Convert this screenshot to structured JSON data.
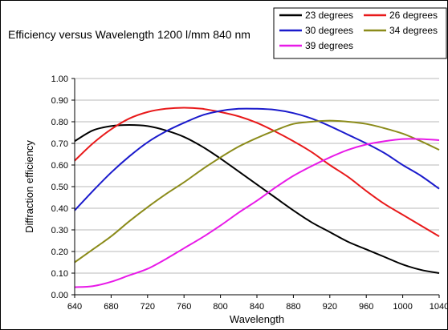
{
  "chart_data": {
    "type": "line",
    "title": "Efficiency versus Wavelength  1200 l/mm 840 nm",
    "xlabel": "Wavelength",
    "ylabel": "Diffraction efficiency",
    "xlim": [
      640,
      1040
    ],
    "ylim": [
      0,
      1
    ],
    "x_ticks": [
      "640",
      "680",
      "720",
      "760",
      "800",
      "840",
      "880",
      "920",
      "960",
      "1000",
      "1040"
    ],
    "y_ticks": [
      "0.00",
      "0.10",
      "0.20",
      "0.30",
      "0.40",
      "0.50",
      "0.60",
      "0.70",
      "0.80",
      "0.90",
      "1.00"
    ],
    "grid": "horizontal",
    "legend_position": "top-right",
    "x": [
      640,
      660,
      680,
      700,
      720,
      740,
      760,
      780,
      800,
      820,
      840,
      860,
      880,
      900,
      920,
      940,
      960,
      980,
      1000,
      1020,
      1040
    ],
    "series": [
      {
        "name": "23 degrees",
        "color": "#000000",
        "values": [
          0.71,
          0.76,
          0.78,
          0.785,
          0.78,
          0.76,
          0.73,
          0.685,
          0.63,
          0.57,
          0.51,
          0.45,
          0.39,
          0.335,
          0.29,
          0.245,
          0.21,
          0.175,
          0.14,
          0.115,
          0.1
        ]
      },
      {
        "name": "26 degrees",
        "color": "#e8191a",
        "values": [
          0.62,
          0.7,
          0.765,
          0.815,
          0.845,
          0.86,
          0.865,
          0.86,
          0.845,
          0.825,
          0.795,
          0.755,
          0.71,
          0.66,
          0.6,
          0.545,
          0.48,
          0.42,
          0.37,
          0.32,
          0.27
        ]
      },
      {
        "name": "30 degrees",
        "color": "#1a1acc",
        "values": [
          0.39,
          0.48,
          0.565,
          0.64,
          0.705,
          0.755,
          0.795,
          0.83,
          0.85,
          0.86,
          0.86,
          0.855,
          0.84,
          0.815,
          0.78,
          0.74,
          0.7,
          0.655,
          0.6,
          0.55,
          0.49
        ]
      },
      {
        "name": "34 degrees",
        "color": "#8b8b1a",
        "values": [
          0.15,
          0.21,
          0.27,
          0.34,
          0.405,
          0.465,
          0.52,
          0.58,
          0.635,
          0.685,
          0.725,
          0.76,
          0.79,
          0.8,
          0.805,
          0.8,
          0.79,
          0.77,
          0.745,
          0.71,
          0.67
        ]
      },
      {
        "name": "39 degrees",
        "color": "#e81ae8",
        "values": [
          0.035,
          0.04,
          0.06,
          0.09,
          0.12,
          0.165,
          0.215,
          0.265,
          0.32,
          0.38,
          0.435,
          0.495,
          0.55,
          0.595,
          0.635,
          0.67,
          0.695,
          0.71,
          0.72,
          0.72,
          0.715
        ]
      }
    ]
  },
  "colors": {
    "plot_background": "#ffffff",
    "gridline": "#b8b8b8"
  }
}
